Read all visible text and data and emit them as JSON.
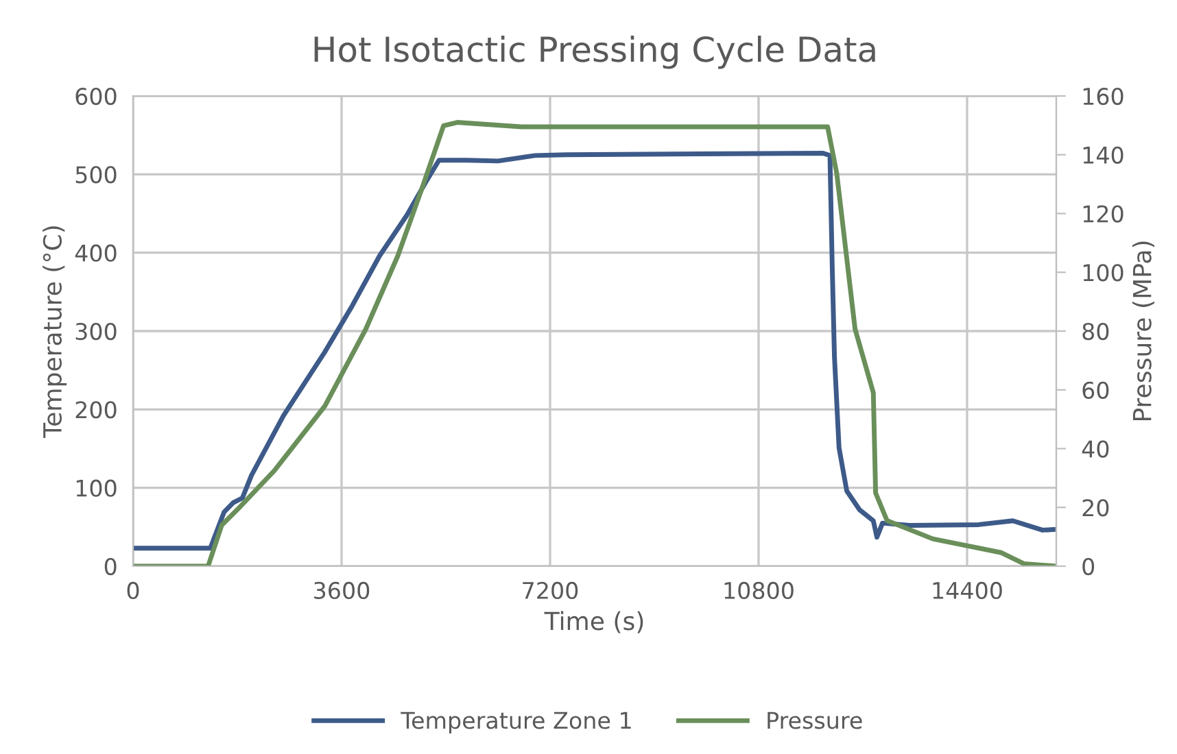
{
  "chart_data": {
    "type": "line",
    "title": "Hot Isotactic Pressing Cycle Data",
    "xlabel": "Time (s)",
    "ylabel": "Temperature (°C)",
    "y2label": "Pressure (MPa)",
    "xlim": [
      0,
      15940
    ],
    "xticks": [
      0,
      3600,
      7200,
      10800,
      14400
    ],
    "ylim": [
      0,
      600
    ],
    "yticks": [
      0,
      100,
      200,
      300,
      400,
      500,
      600
    ],
    "y2lim": [
      0,
      160
    ],
    "y2ticks": [
      0,
      20,
      40,
      60,
      80,
      100,
      120,
      140,
      160
    ],
    "grid": true,
    "legend": "bottom",
    "marker": "none",
    "line_style": "solid",
    "series": [
      {
        "name": "Temperature Zone 1",
        "color": "#3d5a89",
        "x": [
          0,
          1334,
          1571,
          1729,
          1887,
          2045,
          2597,
          3308,
          3782,
          4256,
          4729,
          5045,
          5282,
          5755,
          6300,
          6940,
          7484,
          11913,
          12032,
          12071,
          12110,
          12189,
          12323,
          12544,
          12781,
          12843,
          12939,
          13413,
          14597,
          15189,
          15703,
          15940
        ],
        "values": [
          23,
          23,
          69,
          81,
          87,
          116,
          192,
          273,
          332,
          396,
          448,
          489,
          518,
          518,
          517,
          524,
          525,
          527,
          524,
          384,
          267,
          151,
          96,
          72,
          58,
          37,
          55,
          52,
          53,
          58,
          46,
          47
        ]
      },
      {
        "name": "Pressure",
        "color": "#6a8f5a",
        "axis": "y2",
        "x": [
          0,
          1295,
          1532,
          1808,
          2439,
          3308,
          4019,
          4571,
          4966,
          5361,
          5598,
          6703,
          7492,
          11992,
          12150,
          12466,
          12781,
          12821,
          13018,
          13808,
          14992,
          15387,
          15940
        ],
        "values": [
          0,
          0,
          14,
          19.4,
          32.5,
          54.4,
          80.7,
          105.6,
          127.3,
          149.9,
          151,
          149.5,
          149.5,
          149.5,
          133.6,
          80.7,
          59,
          24.9,
          15.5,
          9.3,
          4.6,
          0.8,
          0
        ]
      }
    ]
  }
}
